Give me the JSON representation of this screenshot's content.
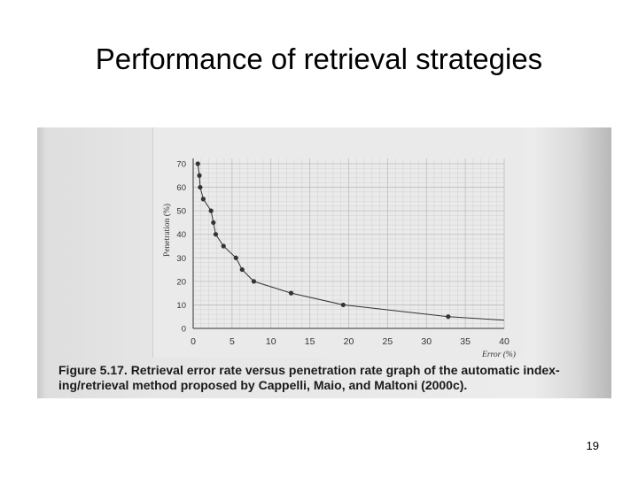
{
  "slide": {
    "title": "Performance of retrieval strategies",
    "page_number": "19"
  },
  "figure": {
    "caption_line1": "Figure 5.17. Retrieval error rate versus penetration rate graph of the automatic index-",
    "caption_line2": "ing/retrieval method proposed by Cappelli, Maio, and Maltoni (2000c)."
  },
  "colors": {
    "curve": "#333333",
    "points": "#333333",
    "grid": "#b9b9b9",
    "axis_text": "#333333"
  },
  "chart_data": {
    "type": "line",
    "xlabel": "Error (%)",
    "ylabel": "Penetration (%)",
    "xlim": [
      0,
      40
    ],
    "ylim": [
      0,
      70
    ],
    "x_ticks": [
      0,
      5,
      10,
      15,
      20,
      25,
      30,
      35,
      40
    ],
    "y_ticks": [
      0,
      10,
      20,
      30,
      40,
      50,
      60,
      70
    ],
    "grid": true,
    "series": [
      {
        "points": [
          [
            0.6,
            70
          ],
          [
            0.8,
            65
          ],
          [
            0.9,
            60
          ],
          [
            1.3,
            55
          ],
          [
            2.3,
            50
          ],
          [
            2.6,
            45
          ],
          [
            2.9,
            40
          ],
          [
            3.9,
            35
          ],
          [
            5.5,
            30
          ],
          [
            6.3,
            25
          ],
          [
            7.8,
            20
          ],
          [
            12.6,
            15
          ],
          [
            19.3,
            10
          ],
          [
            32.8,
            5
          ],
          [
            40,
            3.5
          ]
        ],
        "markers": [
          [
            0.6,
            70
          ],
          [
            0.8,
            65
          ],
          [
            0.9,
            60
          ],
          [
            1.3,
            55
          ],
          [
            2.3,
            50
          ],
          [
            2.6,
            45
          ],
          [
            2.9,
            40
          ],
          [
            3.9,
            35
          ],
          [
            5.5,
            30
          ],
          [
            6.3,
            25
          ],
          [
            7.8,
            20
          ],
          [
            12.6,
            15
          ],
          [
            19.3,
            10
          ],
          [
            32.8,
            5
          ]
        ]
      }
    ]
  }
}
